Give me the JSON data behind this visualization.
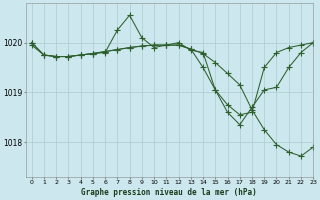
{
  "title": "Graphe pression niveau de la mer (hPa)",
  "background_color": "#cce8ee",
  "grid_color": "#aacccc",
  "line_color": "#2d5f2d",
  "marker_color": "#2d5f2d",
  "xlim": [
    -0.5,
    23
  ],
  "ylim": [
    1017.3,
    1020.8
  ],
  "yticks": [
    1018,
    1019,
    1020
  ],
  "xticks": [
    0,
    1,
    2,
    3,
    4,
    5,
    6,
    7,
    8,
    9,
    10,
    11,
    12,
    13,
    14,
    15,
    16,
    17,
    18,
    19,
    20,
    21,
    22,
    23
  ],
  "series1_x": [
    0,
    1,
    2,
    3,
    4,
    5,
    6,
    7,
    8,
    9,
    10,
    11,
    12,
    13,
    14,
    15,
    16,
    17,
    18,
    19,
    20,
    21,
    22,
    23
  ],
  "series1_y": [
    1020.0,
    1019.75,
    1019.72,
    1019.72,
    1019.75,
    1019.78,
    1019.8,
    1020.25,
    1020.55,
    1020.1,
    1019.9,
    1019.95,
    1020.0,
    1019.85,
    1019.8,
    1019.05,
    1018.75,
    1018.55,
    1018.6,
    1019.5,
    1019.8,
    1019.9,
    1019.95,
    1020.0
  ],
  "series2_x": [
    0,
    1,
    2,
    3,
    4,
    5,
    6,
    7,
    8,
    9,
    10,
    11,
    12,
    13,
    14,
    15,
    16,
    17,
    18,
    19,
    20,
    21,
    22,
    23
  ],
  "series2_y": [
    1020.0,
    1019.75,
    1019.72,
    1019.72,
    1019.75,
    1019.78,
    1019.82,
    1019.86,
    1019.9,
    1019.93,
    1019.95,
    1019.95,
    1019.95,
    1019.87,
    1019.5,
    1019.05,
    1018.6,
    1018.35,
    1018.7,
    1019.05,
    1019.1,
    1019.5,
    1019.8,
    1020.0
  ],
  "series3_x": [
    0,
    1,
    2,
    3,
    4,
    5,
    6,
    7,
    8,
    9,
    10,
    11,
    12,
    13,
    14,
    15,
    16,
    17,
    18,
    19,
    20,
    21,
    22,
    23
  ],
  "series3_y": [
    1019.95,
    1019.75,
    1019.72,
    1019.72,
    1019.75,
    1019.78,
    1019.82,
    1019.86,
    1019.9,
    1019.93,
    1019.95,
    1019.95,
    1019.95,
    1019.87,
    1019.78,
    1019.6,
    1019.38,
    1019.15,
    1018.65,
    1018.25,
    1017.95,
    1017.8,
    1017.72,
    1017.9
  ]
}
